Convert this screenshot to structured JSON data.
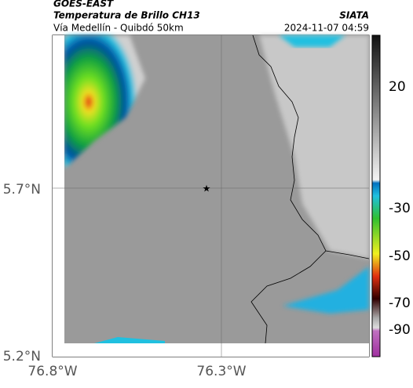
{
  "header": {
    "source": "GOES-EAST",
    "title": "Temperatura de Brillo CH13",
    "org": "SIATA",
    "route": "Vía Medellín - Quibdó 50km",
    "datetime": "2024-11-07 04:59"
  },
  "axes": {
    "lat_labels": [
      "5.7°N",
      "5.2°N"
    ],
    "lon_labels": [
      "76.8°W",
      "76.3°W"
    ]
  },
  "colorbar": {
    "tick_labels": [
      "20",
      "-30",
      "-50",
      "-70",
      "-90"
    ]
  }
}
